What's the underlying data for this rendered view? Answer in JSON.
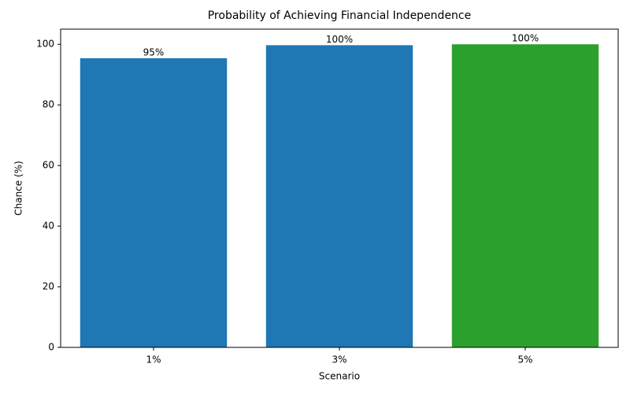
{
  "chart_data": {
    "type": "bar",
    "title": "Probability of Achieving Financial Independence",
    "x_label": "Scenario",
    "y_label": "Chance (%)",
    "categories": [
      "1%",
      "3%",
      "5%"
    ],
    "values": [
      95.4,
      99.7,
      100
    ],
    "value_labels": [
      "95%",
      "100%",
      "100%"
    ],
    "colors": [
      "#1f77b4",
      "#1f77b4",
      "#2ca02c"
    ],
    "ylim": [
      0,
      105
    ],
    "yticks": [
      0,
      20,
      40,
      60,
      80,
      100
    ],
    "grid": false
  }
}
